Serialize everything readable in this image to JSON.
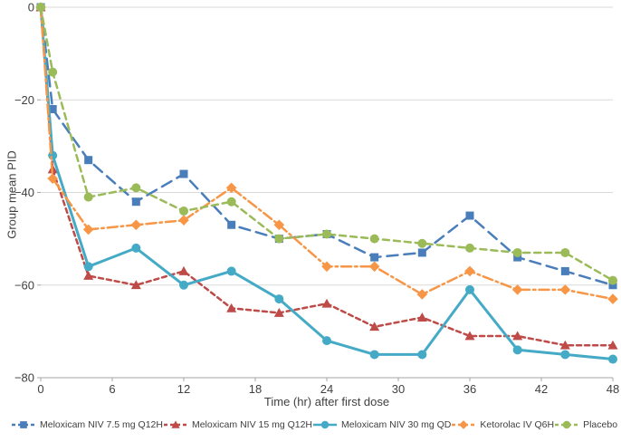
{
  "chart_data": {
    "type": "line",
    "title": "",
    "xlabel": "Time (hr) after first dose",
    "ylabel": "Group mean PID",
    "xlim": [
      0,
      48
    ],
    "ylim": [
      -80,
      0
    ],
    "x_ticks": [
      0,
      6,
      12,
      18,
      24,
      30,
      36,
      42,
      48
    ],
    "y_ticks": [
      0,
      -20,
      -40,
      -60,
      -80
    ],
    "y_tick_labels": [
      "0",
      "−20",
      "−40",
      "−60",
      "−80"
    ],
    "grid": "horizontal-only",
    "legend_position": "bottom",
    "x": [
      0,
      1,
      4,
      8,
      12,
      16,
      20,
      24,
      28,
      32,
      36,
      40,
      44,
      48
    ],
    "series": [
      {
        "name": "Meloxicam NIV 7.5 mg Q12H",
        "color": "#4a7ebb",
        "dash": "long-dash",
        "marker": "square",
        "line_width": 2.5,
        "values": [
          0,
          -22,
          -33,
          -42,
          -36,
          -47,
          -50,
          -49,
          -54,
          -53,
          -45,
          -54,
          -57,
          -60
        ]
      },
      {
        "name": "Meloxicam NIV 15 mg Q12H",
        "color": "#be4b48",
        "dash": "short-dash",
        "marker": "triangle",
        "line_width": 2.5,
        "values": [
          0,
          -35,
          -58,
          -60,
          -57,
          -65,
          -66,
          -64,
          -69,
          -67,
          -71,
          -71,
          -73,
          -73
        ]
      },
      {
        "name": "Meloxicam NIV 30 mg QD",
        "color": "#44aac6",
        "dash": "solid",
        "marker": "circle",
        "line_width": 3,
        "values": [
          0,
          -32,
          -56,
          -52,
          -60,
          -57,
          -63,
          -72,
          -75,
          -75,
          -61,
          -74,
          -75,
          -76
        ]
      },
      {
        "name": "Ketorolac IV Q6H",
        "color": "#f79646",
        "dash": "dash-dot",
        "marker": "diamond",
        "line_width": 2.5,
        "values": [
          0,
          -37,
          -48,
          -47,
          -46,
          -39,
          -47,
          -56,
          -56,
          -62,
          -57,
          -61,
          -61,
          -63
        ]
      },
      {
        "name": "Placebo",
        "color": "#9bbb59",
        "dash": "dash",
        "marker": "circle",
        "line_width": 2.5,
        "values": [
          0,
          -14,
          -41,
          -39,
          -44,
          -42,
          -50,
          -49,
          -50,
          -51,
          -52,
          -53,
          -53,
          -59
        ]
      }
    ]
  }
}
